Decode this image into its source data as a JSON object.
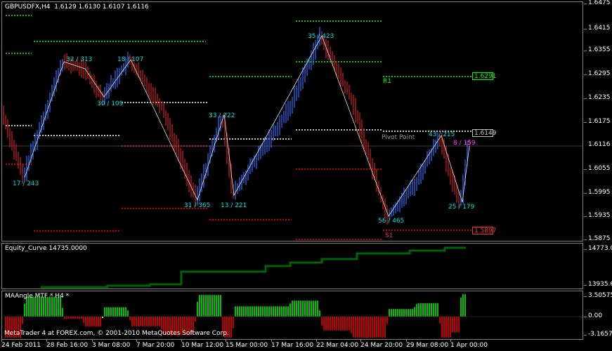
{
  "chart": {
    "symbol_title": "GBPUSDFX,H4  1.6129 1.6130 1.6107 1.6116",
    "current_price": "1.6116",
    "price_axis_ticks": [
      "1.6475",
      "1.6415",
      "1.6355",
      "1.6295",
      "1.6235",
      "1.6175",
      "1.6055",
      "1.5995",
      "1.5935",
      "1.5875"
    ],
    "pivot_levels": [
      {
        "name": "R1",
        "value": "1.6291",
        "color": "#00ff00"
      },
      {
        "name": "Pivot Point",
        "value": "1.6149",
        "color": "#c0c0c0"
      },
      {
        "name": "S1",
        "value": "1.5897",
        "color": "#ff3030"
      }
    ],
    "swing_labels": [
      "17 / 243",
      "32 / 313",
      "30 / 109",
      "18 / 107",
      "31 / 365",
      "33 / 222",
      "13 / 221",
      "35 / 423",
      "56 / 465",
      "43 / 215",
      "8 / 159",
      "25 / 179"
    ]
  },
  "equity": {
    "title": "Equity_Curve 14735.0000",
    "axis_ticks": [
      "14773.0",
      "13935.6"
    ],
    "line_color": "#006400"
  },
  "maangle": {
    "title": "MAAngle MTF * H4 *",
    "axis_ticks": [
      "3.50575",
      "0.00",
      "-3.16575"
    ],
    "up_color": "#00c000",
    "down_color": "#c00000",
    "flat_color": "#ffff00"
  },
  "footer": {
    "copyright": "MetaTrader 4 at FOREX.com, © 2001-2010 MetaQuotes Software Corp."
  },
  "time_axis": [
    "24 Feb 2011",
    "28 Feb 16:00",
    "3 Mar 08:00",
    "7 Mar 20:00",
    "10 Mar 12:00",
    "15 Mar 00:00",
    "17 Mar 16:00",
    "22 Mar 04:00",
    "24 Mar 20:00",
    "29 Mar 08:00",
    "1 Apr 00:00"
  ]
}
